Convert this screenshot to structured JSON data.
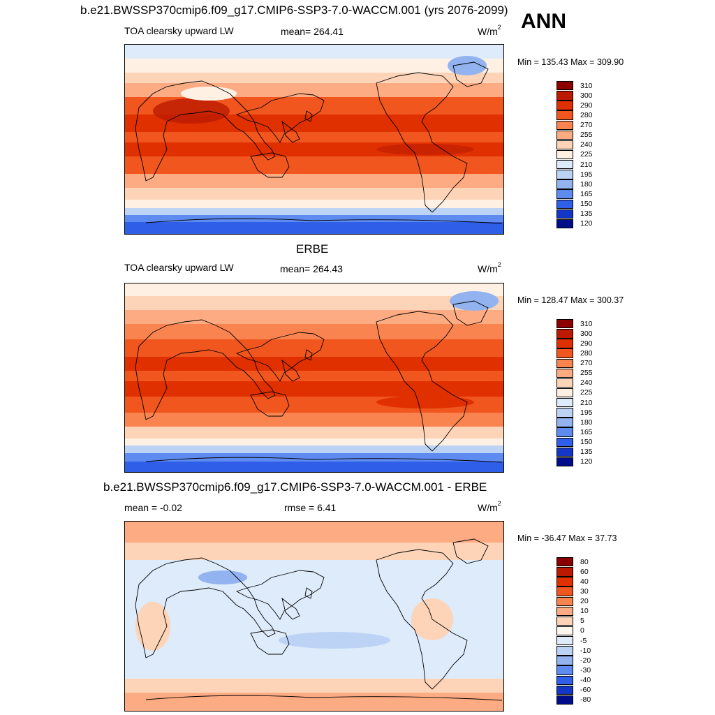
{
  "season": "ANN",
  "panels": [
    {
      "title": "b.e21.BWSSP370cmip6.f09_g17.CMIP6-SSP3-7.0-WACCM.001 (yrs 2076-2099)",
      "left": "TOA clearsky upward LW",
      "center": "mean= 264.41",
      "units": "W/m",
      "units_sup": "2",
      "minmax": "Min = 135.43 Max = 309.90",
      "colorbar": {
        "labels": [
          "310",
          "300",
          "290",
          "280",
          "270",
          "255",
          "240",
          "225",
          "210",
          "195",
          "180",
          "165",
          "150",
          "135",
          "120"
        ],
        "colors": [
          "#8b0000",
          "#bb1a00",
          "#e03000",
          "#f0561e",
          "#fa8450",
          "#fdab82",
          "#fdd4b8",
          "#fff0e4",
          "#deebfb",
          "#bcd3f5",
          "#92b3f0",
          "#5e8bf0",
          "#2f5ee8",
          "#1436c7",
          "#000d8a"
        ]
      }
    },
    {
      "title": "ERBE",
      "left": "TOA clearsky upward LW",
      "center": "mean= 264.43",
      "units": "W/m",
      "units_sup": "2",
      "minmax": "Min = 128.47 Max = 300.37",
      "colorbar": {
        "labels": [
          "310",
          "300",
          "290",
          "280",
          "270",
          "255",
          "240",
          "225",
          "210",
          "195",
          "180",
          "165",
          "150",
          "135",
          "120"
        ],
        "colors": [
          "#8b0000",
          "#bb1a00",
          "#e03000",
          "#f0561e",
          "#fa8450",
          "#fdab82",
          "#fdd4b8",
          "#fff0e4",
          "#deebfb",
          "#bcd3f5",
          "#92b3f0",
          "#5e8bf0",
          "#2f5ee8",
          "#1436c7",
          "#000d8a"
        ]
      }
    },
    {
      "title": "b.e21.BWSSP370cmip6.f09_g17.CMIP6-SSP3-7.0-WACCM.001 - ERBE",
      "left": "mean =  -0.02",
      "center": "rmse =   6.41",
      "units": "W/m",
      "units_sup": "2",
      "minmax": "Min = -36.47 Max =  37.73",
      "colorbar": {
        "labels": [
          "80",
          "60",
          "40",
          "30",
          "20",
          "10",
          "5",
          "0",
          "-5",
          "-10",
          "-20",
          "-30",
          "-40",
          "-60",
          "-80"
        ],
        "colors": [
          "#8b0000",
          "#bb1a00",
          "#e03000",
          "#f0561e",
          "#fa8450",
          "#fdab82",
          "#fdd4b8",
          "#fff6ee",
          "#deebfb",
          "#bcd3f5",
          "#92b3f0",
          "#5e8bf0",
          "#2f5ee8",
          "#1436c7",
          "#000d8a"
        ]
      }
    }
  ]
}
